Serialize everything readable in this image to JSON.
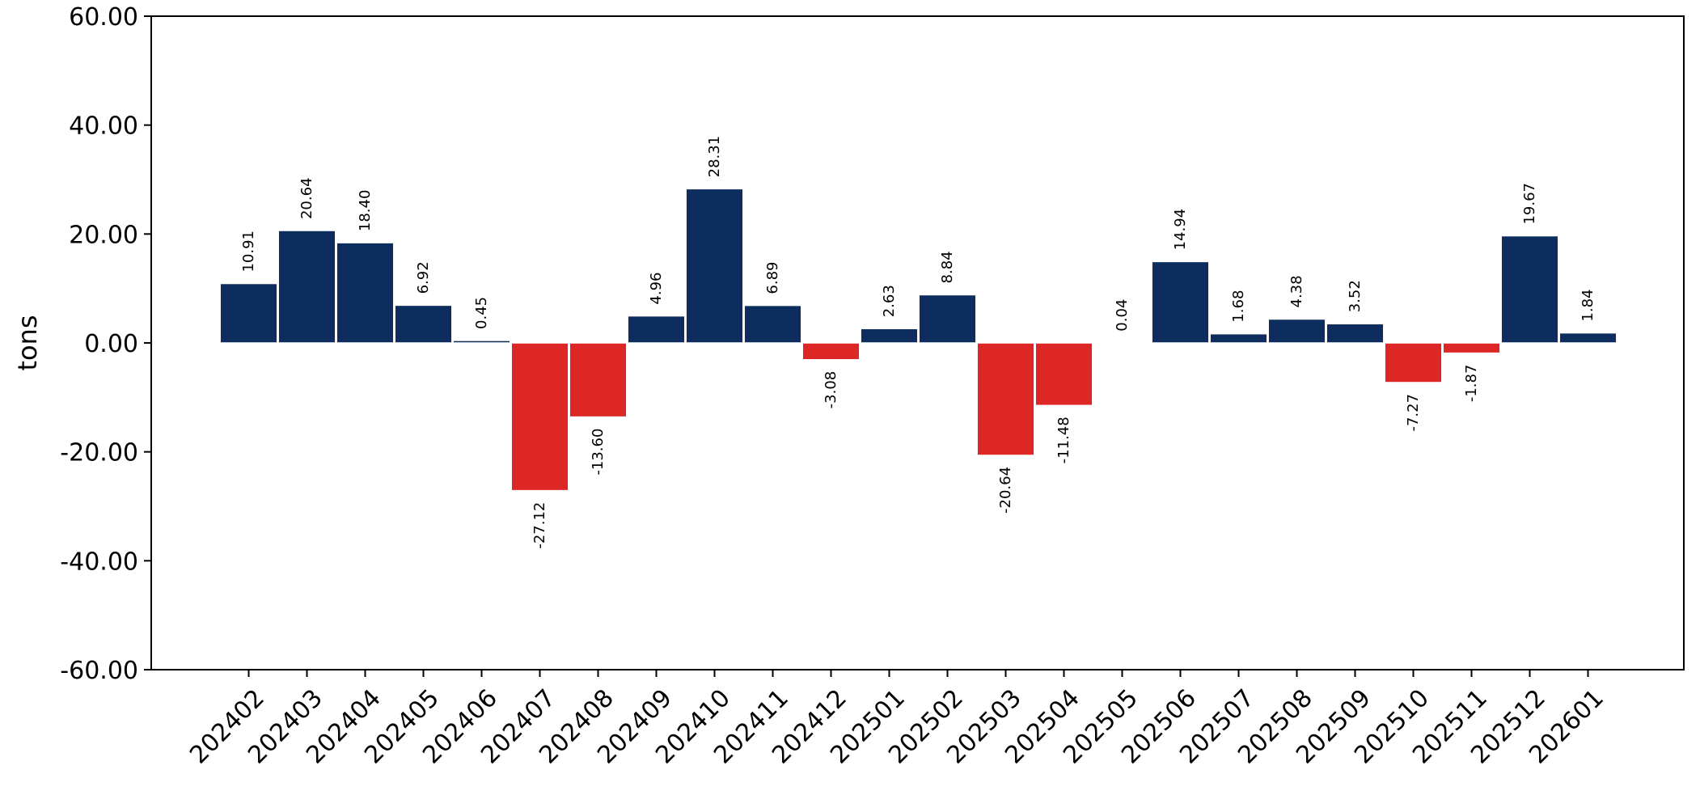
{
  "chart_data": {
    "type": "bar",
    "categories": [
      "202402",
      "202403",
      "202404",
      "202405",
      "202406",
      "202407",
      "202408",
      "202409",
      "202410",
      "202411",
      "202412",
      "202501",
      "202502",
      "202503",
      "202504",
      "202505",
      "202506",
      "202507",
      "202508",
      "202509",
      "202510",
      "202511",
      "202512",
      "202601"
    ],
    "values": [
      10.91,
      20.64,
      18.4,
      6.92,
      0.45,
      -27.12,
      -13.6,
      4.96,
      28.31,
      6.89,
      -3.08,
      2.63,
      8.84,
      -20.64,
      -11.48,
      0.04,
      14.94,
      1.68,
      4.38,
      3.52,
      -7.27,
      -1.87,
      19.67,
      1.84
    ],
    "value_labels": [
      "10.91",
      "20.64",
      "18.40",
      "6.92",
      "0.45",
      "-27.12",
      "-13.60",
      "4.96",
      "28.31",
      "6.89",
      "-3.08",
      "2.63",
      "8.84",
      "-20.64",
      "-11.48",
      "0.04",
      "14.94",
      "1.68",
      "4.38",
      "3.52",
      "-7.27",
      "-1.87",
      "19.67",
      "1.84"
    ],
    "xlabel": "",
    "ylabel": "tons",
    "ylim": [
      -60,
      60
    ],
    "yticks": [
      -60,
      -40,
      -20,
      0,
      20,
      40,
      60
    ],
    "ytick_labels": [
      "-60.00",
      "-40.00",
      "-20.00",
      "0.00",
      "20.00",
      "40.00",
      "60.00"
    ],
    "grid": false,
    "colors": {
      "positive": "#0d2d5e",
      "negative": "#dd2626"
    }
  }
}
